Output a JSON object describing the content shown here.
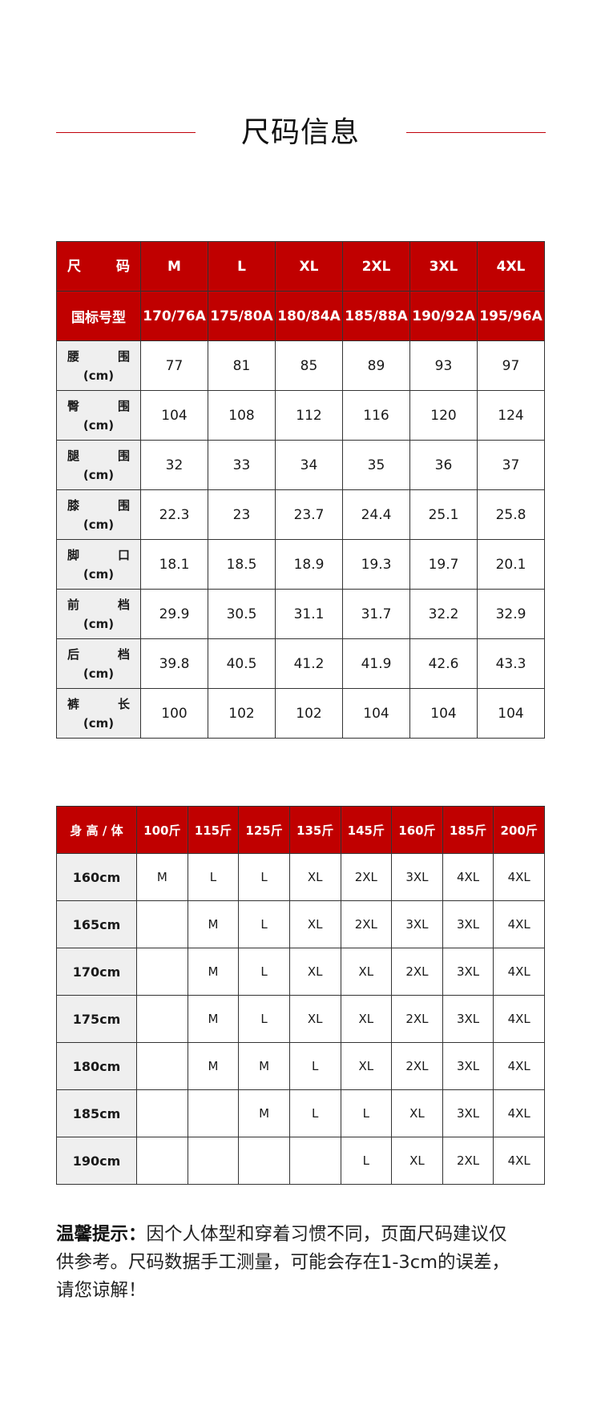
{
  "title": "尺码信息",
  "accent_color": "#c00000",
  "size_table": {
    "header_label": "尺　码",
    "sizes": [
      "M",
      "L",
      "XL",
      "2XL",
      "3XL",
      "4XL"
    ],
    "standard_label": "国标号型",
    "standards": [
      "170/76A",
      "175/80A",
      "180/84A",
      "185/88A",
      "190/92A",
      "195/96A"
    ],
    "rows": [
      {
        "name": "腰　围",
        "unit": "(cm)",
        "values": [
          "77",
          "81",
          "85",
          "89",
          "93",
          "97"
        ]
      },
      {
        "name": "臀　围",
        "unit": "(cm)",
        "values": [
          "104",
          "108",
          "112",
          "116",
          "120",
          "124"
        ]
      },
      {
        "name": "腿　围",
        "unit": "(cm)",
        "values": [
          "32",
          "33",
          "34",
          "35",
          "36",
          "37"
        ]
      },
      {
        "name": "膝　围",
        "unit": "(cm)",
        "values": [
          "22.3",
          "23",
          "23.7",
          "24.4",
          "25.1",
          "25.8"
        ]
      },
      {
        "name": "脚　口",
        "unit": "(cm)",
        "values": [
          "18.1",
          "18.5",
          "18.9",
          "19.3",
          "19.7",
          "20.1"
        ]
      },
      {
        "name": "前　档",
        "unit": "(cm)",
        "values": [
          "29.9",
          "30.5",
          "31.1",
          "31.7",
          "32.2",
          "32.9"
        ]
      },
      {
        "name": "后　档",
        "unit": "(cm)",
        "values": [
          "39.8",
          "40.5",
          "41.2",
          "41.9",
          "42.6",
          "43.3"
        ]
      },
      {
        "name": "裤　长",
        "unit": "(cm)",
        "values": [
          "100",
          "102",
          "102",
          "104",
          "104",
          "104"
        ]
      }
    ]
  },
  "fit_table": {
    "corner_label": "身 高 / 体",
    "weights": [
      "100斤",
      "115斤",
      "125斤",
      "135斤",
      "145斤",
      "160斤",
      "185斤",
      "200斤"
    ],
    "rows": [
      {
        "height": "160cm",
        "values": [
          "M",
          "L",
          "L",
          "XL",
          "2XL",
          "3XL",
          "4XL",
          "4XL"
        ]
      },
      {
        "height": "165cm",
        "values": [
          "",
          "M",
          "L",
          "XL",
          "2XL",
          "3XL",
          "3XL",
          "4XL"
        ]
      },
      {
        "height": "170cm",
        "values": [
          "",
          "M",
          "L",
          "XL",
          "XL",
          "2XL",
          "3XL",
          "4XL"
        ]
      },
      {
        "height": "175cm",
        "values": [
          "",
          "M",
          "L",
          "XL",
          "XL",
          "2XL",
          "3XL",
          "4XL"
        ]
      },
      {
        "height": "180cm",
        "values": [
          "",
          "M",
          "M",
          "L",
          "XL",
          "2XL",
          "3XL",
          "4XL"
        ]
      },
      {
        "height": "185cm",
        "values": [
          "",
          "",
          "M",
          "L",
          "L",
          "XL",
          "3XL",
          "4XL"
        ]
      },
      {
        "height": "190cm",
        "values": [
          "",
          "",
          "",
          "",
          "L",
          "XL",
          "2XL",
          "4XL"
        ]
      }
    ]
  },
  "note": {
    "prefix": "温馨提示：",
    "line1": "因个人体型和穿着习惯不同，页面尺码建议仅",
    "line2": "供参考。尺码数据手工测量，可能会存在1-3cm的误差，",
    "line3": "请您谅解！"
  }
}
